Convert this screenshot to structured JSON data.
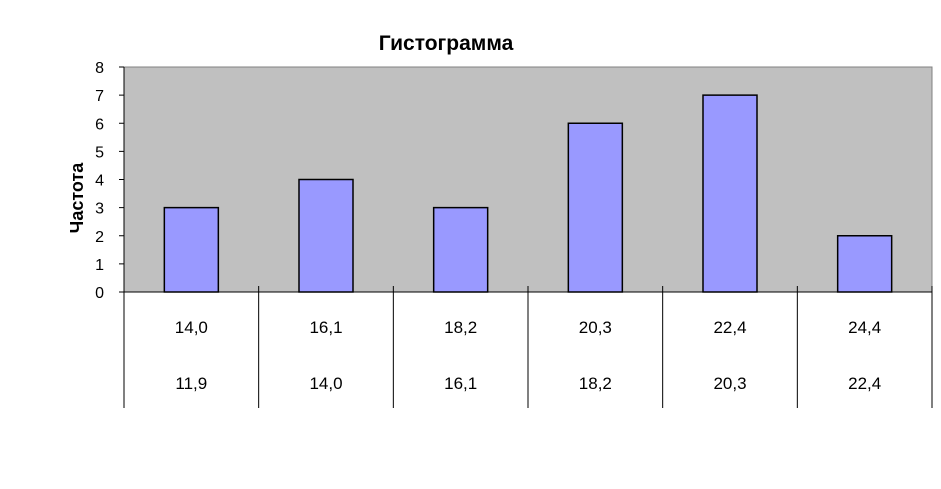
{
  "chart_data": {
    "type": "bar",
    "title": "Гистограмма",
    "xlabel": "",
    "ylabel": "Частота",
    "ylim": [
      0,
      8
    ],
    "yticks": [
      0,
      1,
      2,
      3,
      4,
      5,
      6,
      7,
      8
    ],
    "categories": [
      {
        "upper": "14,0",
        "lower": "11,9"
      },
      {
        "upper": "16,1",
        "lower": "14,0"
      },
      {
        "upper": "18,2",
        "lower": "16,1"
      },
      {
        "upper": "20,3",
        "lower": "18,2"
      },
      {
        "upper": "22,4",
        "lower": "20,3"
      },
      {
        "upper": "24,4",
        "lower": "22,4"
      }
    ],
    "values": [
      3,
      4,
      3,
      6,
      7,
      2
    ],
    "grid": false,
    "legend": "none",
    "colors": {
      "plot_background": "#c0c0c0",
      "bar_fill": "#9999ff",
      "bar_stroke": "#000000"
    }
  }
}
